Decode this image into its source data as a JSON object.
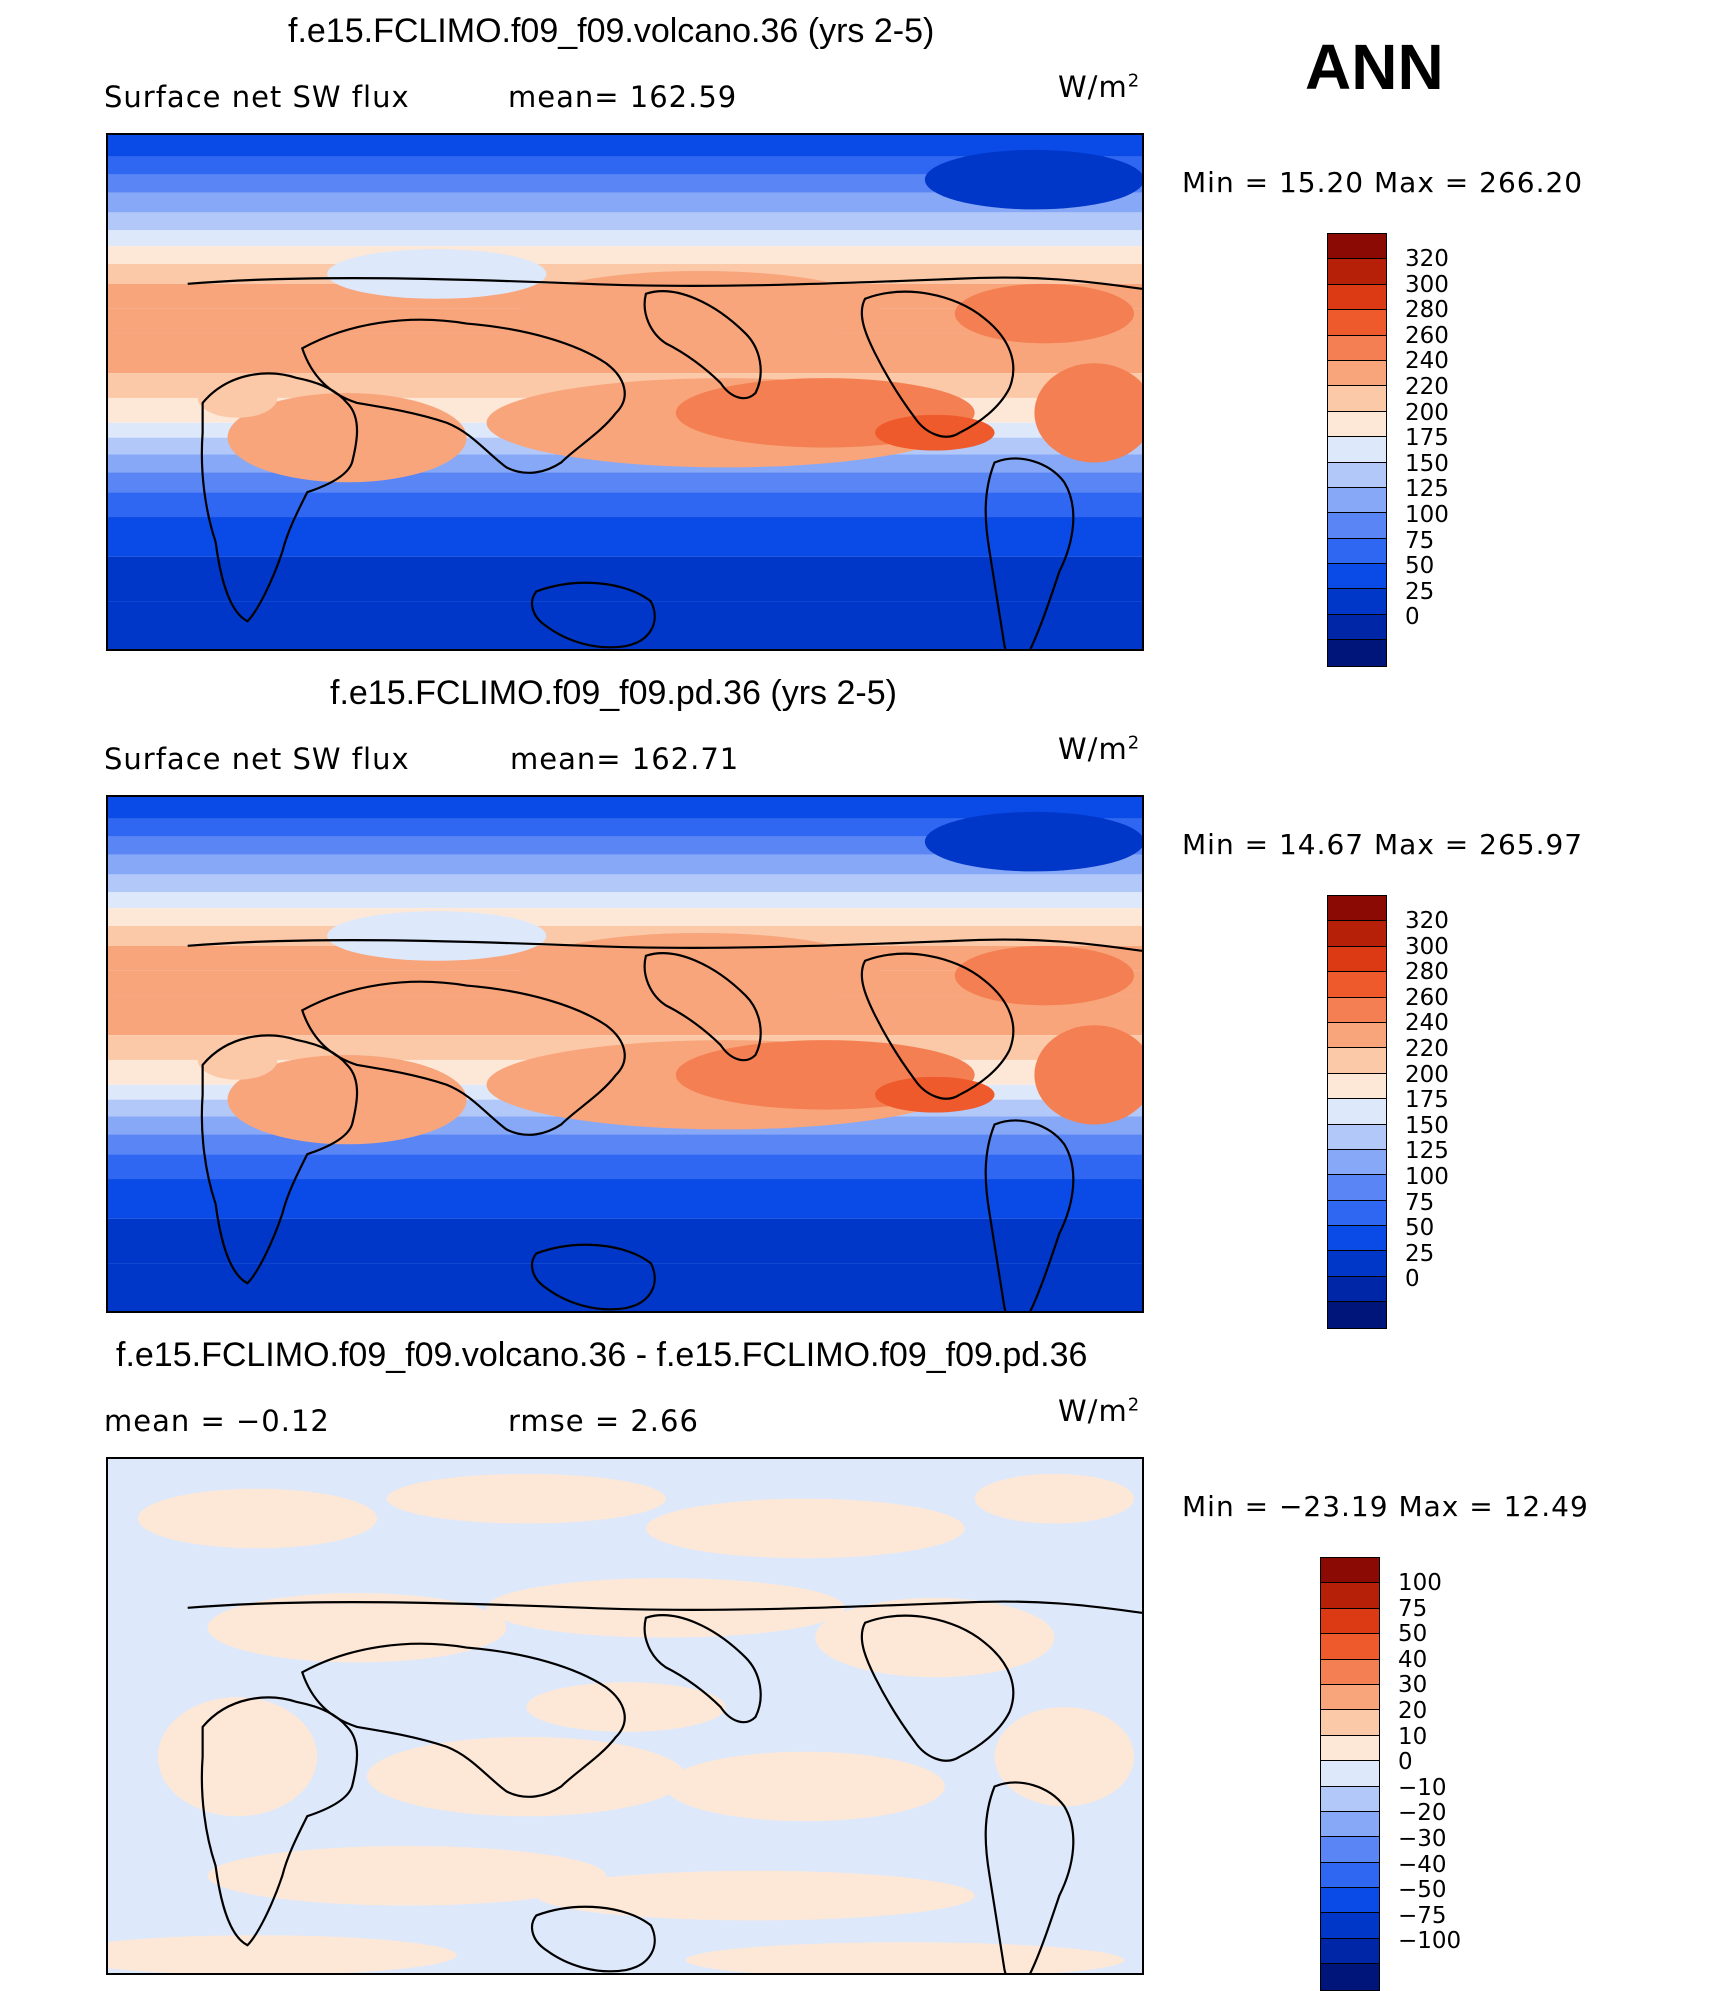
{
  "season": "ANN",
  "units_base": "W/m",
  "units_exp": "2",
  "palette_abs": [
    "#00157a",
    "#0026a8",
    "#0037c8",
    "#0a4ae6",
    "#2f66f2",
    "#5a86f5",
    "#86a8f7",
    "#b2c8f8",
    "#dde8fa",
    "#fde8d8",
    "#fbc9a8",
    "#f8a57c",
    "#f47f52",
    "#ef5a2c",
    "#dc3a14",
    "#b62008",
    "#8c0a04"
  ],
  "palette_diff": [
    "#00157a",
    "#0026a8",
    "#0037c8",
    "#0a4ae6",
    "#2f66f2",
    "#5a86f5",
    "#86a8f7",
    "#b2c8f8",
    "#dde8fa",
    "#fde8d8",
    "#fbc9a8",
    "#f8a57c",
    "#f47f52",
    "#ef5a2c",
    "#dc3a14",
    "#b62008",
    "#8c0a04"
  ],
  "panels": [
    {
      "title": "f.e15.FCLIMO.f09_f09.volcano.36 (yrs 2-5)",
      "left_text": "Surface net SW flux",
      "mid_text": "mean= 162.59",
      "minmax": "Min =   15.20 Max = 266.20",
      "colorbar_labels": [
        "320",
        "300",
        "280",
        "260",
        "240",
        "220",
        "200",
        "175",
        "150",
        "125",
        "100",
        "75",
        "50",
        "25",
        "0"
      ],
      "field": "abs"
    },
    {
      "title": "f.e15.FCLIMO.f09_f09.pd.36 (yrs 2-5)",
      "left_text": "Surface net SW flux",
      "mid_text": "mean= 162.71",
      "minmax": "Min =   14.67 Max = 265.97",
      "colorbar_labels": [
        "320",
        "300",
        "280",
        "260",
        "240",
        "220",
        "200",
        "175",
        "150",
        "125",
        "100",
        "75",
        "50",
        "25",
        "0"
      ],
      "field": "abs"
    },
    {
      "title": "f.e15.FCLIMO.f09_f09.volcano.36 - f.e15.FCLIMO.f09_f09.pd.36",
      "left_text": "mean =   −0.12",
      "mid_text": "rmse =    2.66",
      "minmax": "Min = −23.19 Max =   12.49",
      "colorbar_labels": [
        "100",
        "75",
        "50",
        "40",
        "30",
        "20",
        "10",
        "0",
        "−10",
        "−20",
        "−30",
        "−40",
        "−50",
        "−75",
        "−100"
      ],
      "field": "diff"
    }
  ]
}
